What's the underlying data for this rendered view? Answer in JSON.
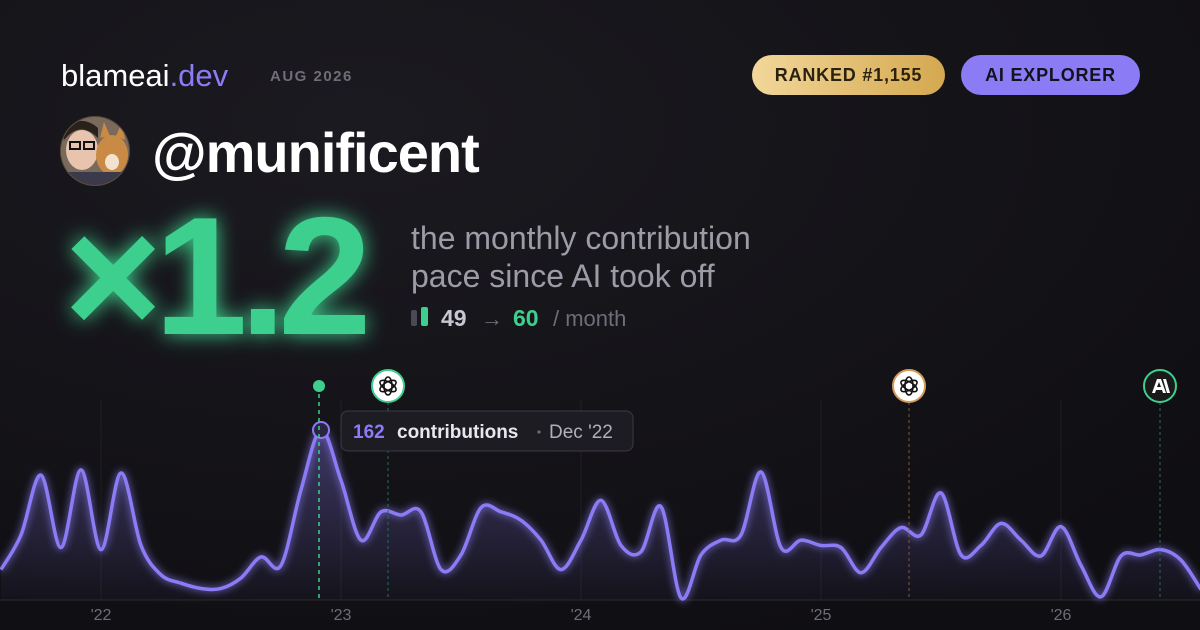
{
  "brand": {
    "name": "blameai",
    "tld": ".dev",
    "date": "AUG 2026"
  },
  "badges": [
    "RANKED #1,155",
    "AI EXPLORER"
  ],
  "handle": "@munificent",
  "multiplier": "×1.2",
  "headline": [
    "the monthly contribution",
    "pace since AI took off"
  ],
  "stats": {
    "before": 49,
    "arrow": "→",
    "after": 60,
    "unit": "/ month"
  },
  "tooltip": {
    "label": "contributions",
    "date": "Dec '22"
  },
  "chart_data": {
    "type": "line",
    "categories": [
      null,
      null,
      null,
      null,
      null,
      "'22",
      null,
      null,
      null,
      null,
      null,
      null,
      null,
      null,
      null,
      null,
      null,
      "'23",
      null,
      null,
      null,
      null,
      null,
      null,
      null,
      null,
      null,
      null,
      null,
      "'24",
      null,
      null,
      null,
      null,
      null,
      null,
      null,
      null,
      null,
      null,
      null,
      "'25",
      null,
      null,
      null,
      null,
      null,
      null,
      null,
      null,
      null,
      null,
      null,
      "'26",
      null,
      null,
      null,
      null,
      null,
      null,
      null
    ],
    "values": [
      29,
      62,
      119,
      50,
      124,
      48,
      121,
      52,
      24,
      16,
      11,
      11,
      21,
      41,
      33,
      105,
      162,
      114,
      57,
      84,
      81,
      84,
      29,
      43,
      88,
      84,
      76,
      57,
      29,
      57,
      95,
      52,
      46,
      89,
      2,
      43,
      57,
      62,
      122,
      50,
      57,
      52,
      50,
      26,
      50,
      69,
      62,
      102,
      43,
      52,
      73,
      57,
      42,
      70,
      33,
      3,
      42,
      43,
      48,
      38,
      10
    ],
    "color": "#8b7cf6",
    "ylim": [
      0,
      162
    ]
  }
}
